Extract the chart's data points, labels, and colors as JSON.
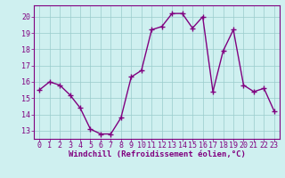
{
  "x": [
    0,
    1,
    2,
    3,
    4,
    5,
    6,
    7,
    8,
    9,
    10,
    11,
    12,
    13,
    14,
    15,
    16,
    17,
    18,
    19,
    20,
    21,
    22,
    23
  ],
  "y": [
    15.5,
    16.0,
    15.8,
    15.2,
    14.4,
    13.1,
    12.8,
    12.8,
    13.8,
    16.3,
    16.7,
    19.2,
    19.4,
    20.2,
    20.2,
    19.3,
    20.0,
    15.4,
    17.9,
    19.2,
    15.8,
    15.4,
    15.6,
    14.2
  ],
  "line_color": "#800080",
  "marker": "+",
  "marker_size": 4,
  "marker_lw": 1.0,
  "line_width": 1.0,
  "bg_color": "#cff0f0",
  "grid_color": "#99cccc",
  "xlabel": "Windchill (Refroidissement éolien,°C)",
  "ylim": [
    12.5,
    20.7
  ],
  "xlim": [
    -0.5,
    23.5
  ],
  "yticks": [
    13,
    14,
    15,
    16,
    17,
    18,
    19,
    20
  ],
  "xticks": [
    0,
    1,
    2,
    3,
    4,
    5,
    6,
    7,
    8,
    9,
    10,
    11,
    12,
    13,
    14,
    15,
    16,
    17,
    18,
    19,
    20,
    21,
    22,
    23
  ],
  "label_color": "#800080",
  "axis_label_fontsize": 6.5,
  "tick_fontsize": 6.0,
  "spine_color": "#800080",
  "xlabel_fontweight": "bold"
}
